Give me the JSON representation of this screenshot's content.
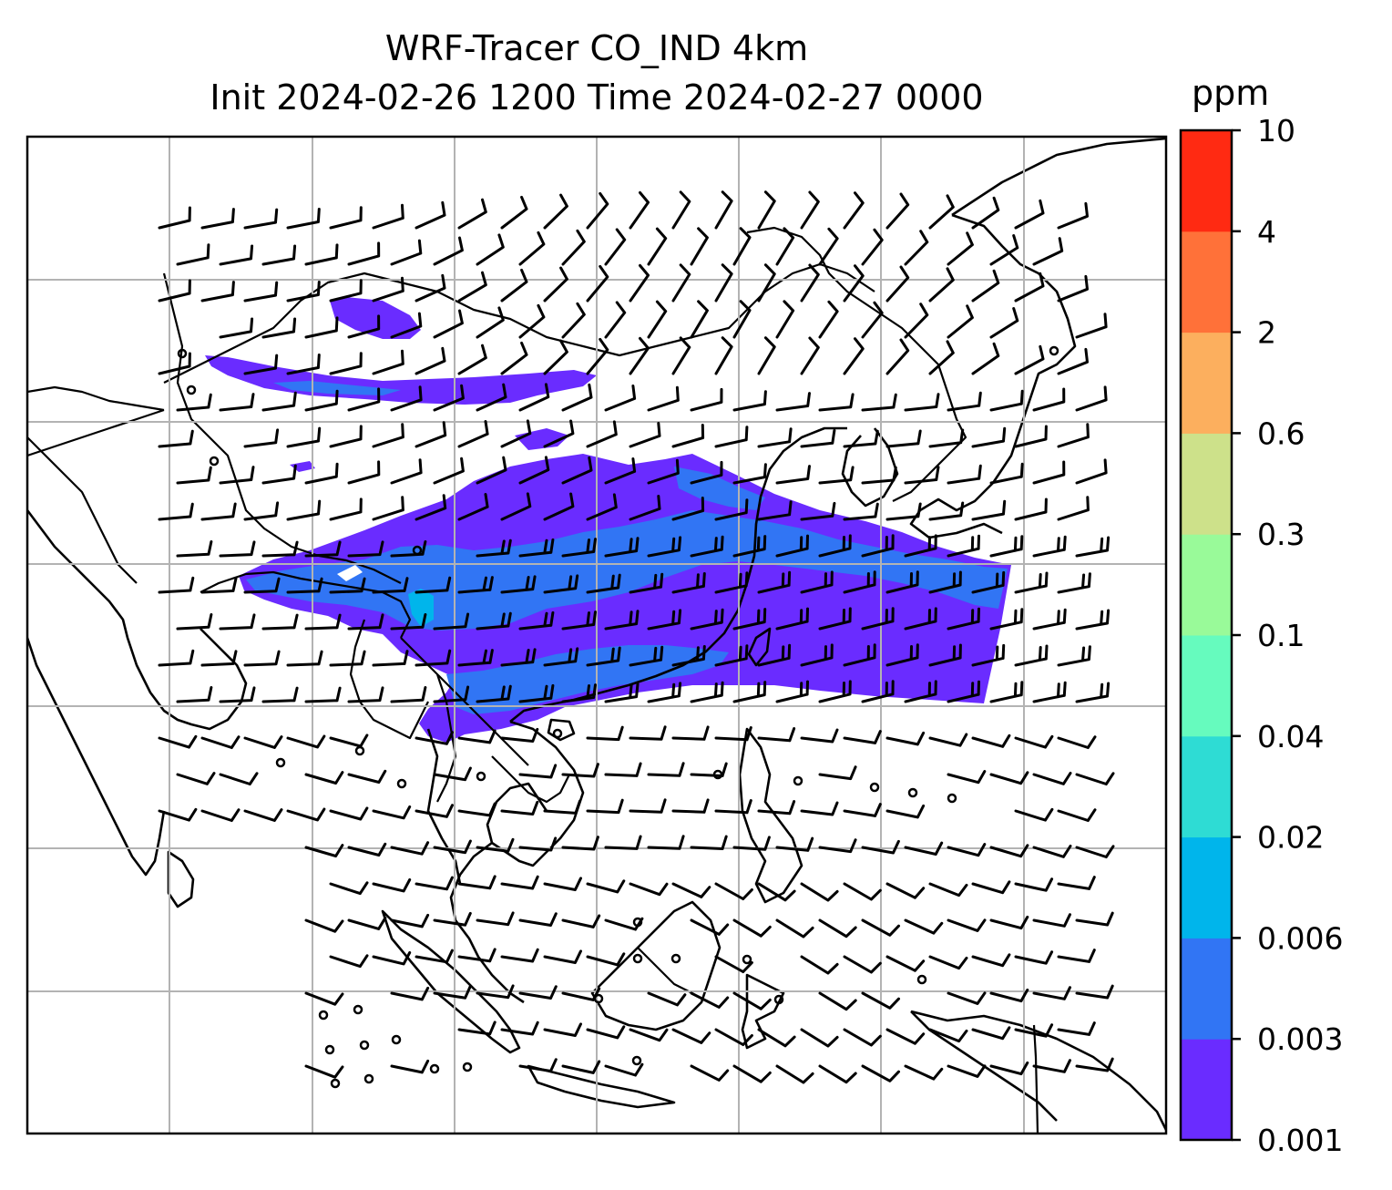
{
  "title": {
    "line1": "WRF-Tracer CO_IND 4km",
    "line2": "Init 2024-02-26 1200 Time 2024-02-27 0000"
  },
  "colorbar": {
    "unit": "ppm",
    "levels": [
      "0.001",
      "0.003",
      "0.006",
      "0.02",
      "0.04",
      "0.1",
      "0.3",
      "0.6",
      "2",
      "4",
      "10"
    ],
    "colors": [
      "#6a2cff",
      "#3175f4",
      "#00b5eb",
      "#2edcd4",
      "#66fbbe",
      "#99fa99",
      "#cde18a",
      "#fcaf5e",
      "#ff7139",
      "#ff2a12"
    ]
  },
  "map": {
    "features": [
      "coastlines",
      "country-borders",
      "gridlines",
      "wind-barbs",
      "tracer-concentration"
    ],
    "plume_colors": {
      "low": "#6a2cff",
      "mid": "#3175f4",
      "high": "#00b5eb"
    }
  }
}
